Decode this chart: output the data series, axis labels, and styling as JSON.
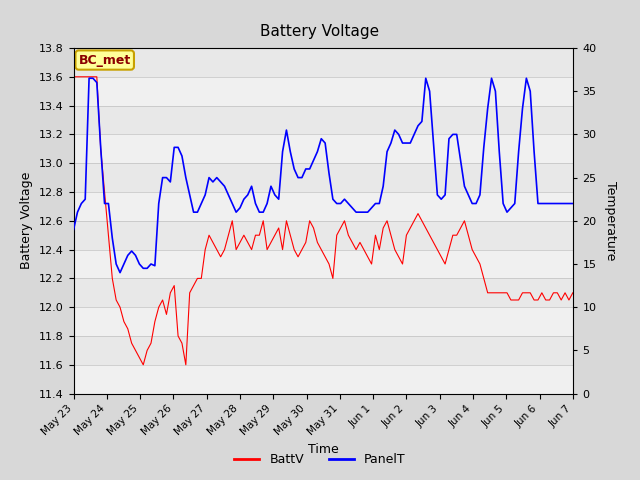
{
  "title": "Battery Voltage",
  "xlabel": "Time",
  "ylabel_left": "Battery Voltage",
  "ylabel_right": "Temperature",
  "ylim_left": [
    11.4,
    13.8
  ],
  "ylim_right": [
    0,
    40
  ],
  "yticks_left": [
    11.4,
    11.6,
    11.8,
    12.0,
    12.2,
    12.4,
    12.6,
    12.8,
    13.0,
    13.2,
    13.4,
    13.6,
    13.8
  ],
  "yticks_right": [
    0,
    5,
    10,
    15,
    20,
    25,
    30,
    35,
    40
  ],
  "fig_bg_color": "#d8d8d8",
  "plot_bg_color": "#e8e8e8",
  "band_white_color": "#f0f0f0",
  "annotation_text": "BC_met",
  "annotation_fg": "#8b0000",
  "annotation_bg": "#ffff99",
  "annotation_border": "#c8a000",
  "line_batt_color": "red",
  "line_panel_color": "blue",
  "legend_batt": "BattV",
  "legend_panel": "PanelT",
  "xtick_labels": [
    "May 23",
    "May 24",
    "May 25",
    "May 26",
    "May 27",
    "May 28",
    "May 29",
    "May 30",
    "May 31",
    "Jun 1",
    "Jun 2",
    "Jun 3",
    "Jun 4",
    "Jun 5",
    "Jun 6",
    "Jun 7"
  ],
  "batt_data": [
    13.6,
    13.6,
    13.6,
    13.6,
    13.6,
    13.6,
    13.6,
    13.1,
    12.8,
    12.5,
    12.2,
    12.05,
    12.0,
    11.9,
    11.85,
    11.75,
    11.7,
    11.65,
    11.6,
    11.7,
    11.75,
    11.9,
    12.0,
    12.05,
    11.95,
    12.1,
    12.15,
    11.8,
    11.75,
    11.6,
    12.1,
    12.15,
    12.2,
    12.2,
    12.4,
    12.5,
    12.45,
    12.4,
    12.35,
    12.4,
    12.5,
    12.6,
    12.4,
    12.45,
    12.5,
    12.45,
    12.4,
    12.5,
    12.5,
    12.6,
    12.4,
    12.45,
    12.5,
    12.55,
    12.4,
    12.6,
    12.5,
    12.4,
    12.35,
    12.4,
    12.45,
    12.6,
    12.55,
    12.45,
    12.4,
    12.35,
    12.3,
    12.2,
    12.5,
    12.55,
    12.6,
    12.5,
    12.45,
    12.4,
    12.45,
    12.4,
    12.35,
    12.3,
    12.5,
    12.4,
    12.55,
    12.6,
    12.5,
    12.4,
    12.35,
    12.3,
    12.5,
    12.55,
    12.6,
    12.65,
    12.6,
    12.55,
    12.5,
    12.45,
    12.4,
    12.35,
    12.3,
    12.4,
    12.5,
    12.5,
    12.55,
    12.6,
    12.5,
    12.4,
    12.35,
    12.3,
    12.2,
    12.1,
    12.1,
    12.1,
    12.1,
    12.1,
    12.1,
    12.05,
    12.05,
    12.05,
    12.1,
    12.1,
    12.1,
    12.05,
    12.05,
    12.1,
    12.05,
    12.05,
    12.1,
    12.1,
    12.05,
    12.1,
    12.05,
    12.1,
    12.05,
    12.1,
    12.05,
    12.1,
    12.05,
    12.05,
    12.1,
    12.05,
    12.1
  ],
  "panel_data": [
    19.0,
    21.0,
    22.0,
    22.5,
    36.5,
    36.5,
    36.0,
    28.5,
    22.0,
    22.0,
    18.0,
    15.0,
    14.0,
    15.0,
    16.0,
    16.5,
    16.0,
    15.0,
    14.5,
    14.5,
    15.0,
    14.8,
    22.0,
    25.0,
    25.0,
    24.5,
    28.5,
    28.5,
    27.5,
    25.0,
    23.0,
    21.0,
    21.0,
    22.0,
    23.0,
    25.0,
    24.5,
    25.0,
    24.5,
    24.0,
    23.0,
    22.0,
    21.0,
    21.5,
    22.5,
    23.0,
    24.0,
    22.0,
    21.0,
    21.0,
    22.0,
    24.0,
    23.0,
    22.5,
    28.0,
    30.5,
    28.0,
    26.0,
    25.0,
    25.0,
    26.0,
    26.0,
    27.0,
    28.0,
    29.5,
    29.0,
    25.5,
    22.5,
    22.0,
    22.0,
    22.5,
    22.0,
    21.5,
    21.0,
    21.0,
    21.0,
    21.0,
    21.5,
    22.0,
    22.0,
    24.0,
    28.0,
    29.0,
    30.5,
    30.0,
    29.0,
    29.0,
    29.0,
    30.0,
    31.0,
    31.5,
    36.5,
    35.0,
    29.0,
    23.0,
    22.5,
    23.0,
    29.5,
    30.0,
    30.0,
    27.0,
    24.0,
    23.0,
    22.0,
    22.0,
    23.0,
    28.5,
    33.0,
    36.5,
    35.0,
    28.0,
    22.0,
    21.0,
    21.5,
    22.0,
    28.0,
    33.0,
    36.5,
    35.0,
    28.0,
    22.0,
    22.0,
    22.0,
    22.0,
    22.0,
    22.0,
    22.0,
    22.0,
    22.0,
    22.0
  ]
}
